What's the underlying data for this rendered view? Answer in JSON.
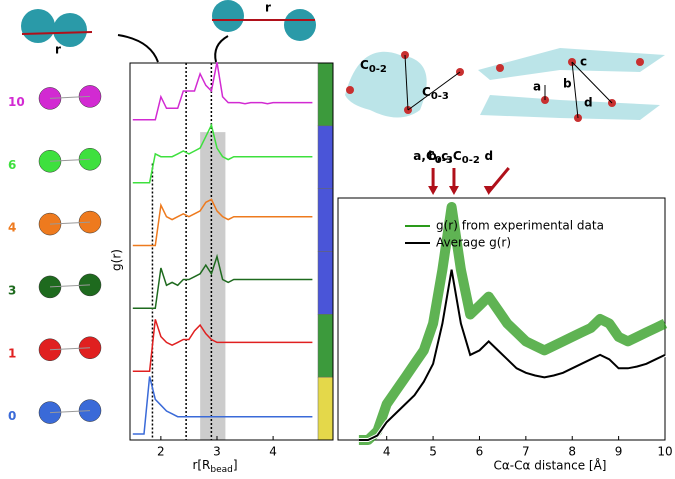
{
  "chart_data": [
    {
      "type": "line",
      "ylabel": "g(r)",
      "xlabel": {
        "main": "r[R",
        "sub": "bead",
        "end": "]"
      },
      "xlim": [
        1.45,
        4.8
      ],
      "xticks": [
        2,
        3,
        4
      ],
      "ylim": [
        0,
        1.2
      ],
      "vlines": [
        1.85,
        2.45,
        2.9
      ],
      "span": [
        2.7,
        3.15
      ],
      "span_color": "#cccccc",
      "side_colors": [
        "#3c9a3c",
        "#4a55d8",
        "#4a55d8",
        "#4a55d8",
        "#3c9a3c",
        "#e4d84a"
      ],
      "x": [
        1.5,
        1.6,
        1.7,
        1.8,
        1.9,
        2.0,
        2.1,
        2.2,
        2.3,
        2.4,
        2.5,
        2.6,
        2.7,
        2.8,
        2.9,
        3.0,
        3.1,
        3.2,
        3.3,
        3.4,
        3.5,
        3.6,
        3.7,
        3.8,
        3.9,
        4.0,
        4.1,
        4.2,
        4.3,
        4.4,
        4.5,
        4.6,
        4.7
      ],
      "series": [
        {
          "name": "10",
          "color": "#d22ad2",
          "values": [
            0,
            0,
            0,
            0,
            0,
            0.4,
            0.2,
            0.2,
            0.2,
            0.5,
            0.5,
            0.5,
            0.8,
            0.6,
            0.5,
            1.0,
            0.4,
            0.3,
            0.3,
            0.3,
            0.28,
            0.3,
            0.3,
            0.3,
            0.28,
            0.3,
            0.3,
            0.3,
            0.3,
            0.3,
            0.3,
            0.3,
            0.3
          ]
        },
        {
          "name": "6",
          "color": "#3ee03e",
          "values": [
            0,
            0,
            0,
            0,
            0.5,
            0.45,
            0.45,
            0.45,
            0.5,
            0.55,
            0.5,
            0.55,
            0.6,
            0.8,
            1.0,
            0.6,
            0.45,
            0.4,
            0.45,
            0.45,
            0.45,
            0.45,
            0.45,
            0.45,
            0.45,
            0.45,
            0.45,
            0.45,
            0.45,
            0.45,
            0.45,
            0.45,
            0.45
          ]
        },
        {
          "name": "4",
          "color": "#ee7a1e",
          "values": [
            0,
            0,
            0,
            0,
            0,
            0.7,
            0.5,
            0.45,
            0.5,
            0.55,
            0.5,
            0.55,
            0.6,
            0.75,
            0.8,
            0.6,
            0.5,
            0.45,
            0.5,
            0.5,
            0.5,
            0.5,
            0.5,
            0.5,
            0.5,
            0.5,
            0.5,
            0.5,
            0.5,
            0.5,
            0.5,
            0.5,
            0.5
          ]
        },
        {
          "name": "3",
          "color": "#1e6a1e",
          "values": [
            0,
            0,
            0,
            0,
            0,
            0.7,
            0.4,
            0.45,
            0.4,
            0.5,
            0.5,
            0.55,
            0.6,
            0.75,
            0.6,
            0.9,
            0.5,
            0.45,
            0.5,
            0.5,
            0.5,
            0.5,
            0.5,
            0.5,
            0.5,
            0.5,
            0.5,
            0.5,
            0.5,
            0.5,
            0.5,
            0.5,
            0.5
          ]
        },
        {
          "name": "1",
          "color": "#e02020",
          "values": [
            0,
            0,
            0,
            0,
            0.9,
            0.6,
            0.5,
            0.45,
            0.5,
            0.55,
            0.55,
            0.7,
            0.8,
            0.65,
            0.55,
            0.5,
            0.5,
            0.5,
            0.5,
            0.5,
            0.5,
            0.5,
            0.5,
            0.5,
            0.5,
            0.5,
            0.5,
            0.5,
            0.5,
            0.5,
            0.5,
            0.5,
            0.5
          ]
        },
        {
          "name": "0",
          "color": "#3a6ad8",
          "values": [
            0,
            0,
            0,
            1.0,
            0.6,
            0.5,
            0.4,
            0.35,
            0.3,
            0.3,
            0.3,
            0.3,
            0.3,
            0.3,
            0.3,
            0.3,
            0.3,
            0.3,
            0.3,
            0.3,
            0.3,
            0.3,
            0.3,
            0.3,
            0.3,
            0.3,
            0.3,
            0.3,
            0.3,
            0.3,
            0.3,
            0.3,
            0.3
          ]
        }
      ]
    },
    {
      "type": "line",
      "xlabel": "Cα-Cα distance [Å]",
      "xlim": [
        2.95,
        10
      ],
      "xticks": [
        4,
        5,
        6,
        7,
        8,
        9,
        10
      ],
      "ylim": [
        0,
        2.7
      ],
      "x": [
        3.4,
        3.6,
        3.8,
        4.0,
        4.2,
        4.4,
        4.6,
        4.8,
        5.0,
        5.2,
        5.4,
        5.6,
        5.8,
        6.0,
        6.2,
        6.4,
        6.6,
        6.8,
        7.0,
        7.2,
        7.4,
        7.6,
        7.8,
        8.0,
        8.2,
        8.4,
        8.6,
        8.8,
        9.0,
        9.2,
        9.4,
        9.6,
        9.8,
        10.0
      ],
      "series": [
        {
          "name": "g(r) from experimental data",
          "color": "#2a9a1a",
          "values": [
            0,
            0,
            0.1,
            0.4,
            0.55,
            0.7,
            0.85,
            1.0,
            1.3,
            1.9,
            2.6,
            1.9,
            1.4,
            1.5,
            1.6,
            1.45,
            1.3,
            1.2,
            1.1,
            1.05,
            1.0,
            1.05,
            1.1,
            1.15,
            1.2,
            1.25,
            1.35,
            1.3,
            1.15,
            1.1,
            1.15,
            1.2,
            1.25,
            1.3
          ]
        },
        {
          "name": "Average g(r)",
          "color": "#000000",
          "values": [
            0,
            0,
            0.05,
            0.2,
            0.3,
            0.4,
            0.5,
            0.65,
            0.85,
            1.3,
            1.9,
            1.3,
            0.95,
            1.0,
            1.1,
            1.0,
            0.9,
            0.8,
            0.75,
            0.72,
            0.7,
            0.72,
            0.75,
            0.8,
            0.85,
            0.9,
            0.95,
            0.9,
            0.8,
            0.8,
            0.82,
            0.85,
            0.9,
            0.95
          ]
        }
      ],
      "annotations": [
        {
          "text": "a,C",
          "sub": "0-3",
          "x": 5.0
        },
        {
          "text": "b,c,C",
          "sub": "0-2",
          "x": 5.45
        },
        {
          "text": "d",
          "sub": null,
          "x": 6.2
        }
      ]
    }
  ],
  "structure_labels": {
    "r": "r",
    "c02": {
      "text": "C",
      "sub": "0-2"
    },
    "c03": {
      "text": "C",
      "sub": "0-3"
    },
    "letters": [
      "a",
      "b",
      "c",
      "d"
    ]
  }
}
